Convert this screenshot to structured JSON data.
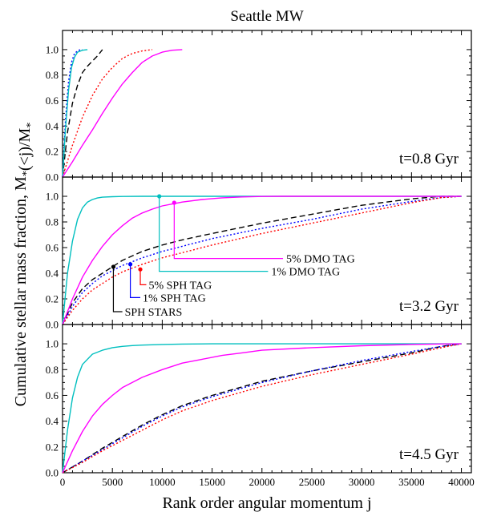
{
  "chart_data": {
    "type": "line",
    "title": "Seattle MW",
    "xlabel": "Rank order angular momentum j",
    "ylabel": "Cumulative stellar mass fraction, M*(<j)/M*",
    "xlim": [
      0,
      41000
    ],
    "ylim": [
      0,
      1.1
    ],
    "x_ticks": [
      "0",
      "5000",
      "10000",
      "15000",
      "20000",
      "25000",
      "30000",
      "35000",
      "40000"
    ],
    "y_ticks": [
      "0.0",
      "0.2",
      "0.4",
      "0.6",
      "0.8",
      "1.0"
    ],
    "grid": false,
    "panels": [
      {
        "time_label": "t=0.8 Gyr",
        "series": [
          {
            "key": "sph_stars",
            "color": "#000000",
            "dash": "dashed",
            "x": [
              0,
              500,
              1000,
              1500,
              2000,
              2500,
              3000,
              3500,
              4000
            ],
            "y": [
              0,
              0.35,
              0.58,
              0.72,
              0.82,
              0.87,
              0.91,
              0.95,
              1.0
            ]
          },
          {
            "key": "sph_tag_1",
            "color": "#0000ff",
            "dash": "dotted",
            "x": [
              0,
              300,
              600,
              900,
              1200,
              1600,
              2000
            ],
            "y": [
              0,
              0.45,
              0.75,
              0.9,
              0.97,
              0.995,
              1.0
            ]
          },
          {
            "key": "sph_tag_5",
            "color": "#ff0000",
            "dash": "dotted",
            "x": [
              0,
              1000,
              2000,
              3000,
              4000,
              5000,
              6000,
              7000,
              8000,
              9000
            ],
            "y": [
              0,
              0.25,
              0.47,
              0.64,
              0.77,
              0.86,
              0.93,
              0.97,
              0.99,
              1.0
            ]
          },
          {
            "key": "dmo_tag_1",
            "color": "#00bfbf",
            "dash": "solid",
            "x": [
              0,
              300,
              600,
              900,
              1200,
              1500,
              2000,
              2500
            ],
            "y": [
              0,
              0.38,
              0.68,
              0.86,
              0.94,
              0.98,
              0.995,
              1.0
            ]
          },
          {
            "key": "dmo_tag_5",
            "color": "#ff00ff",
            "dash": "solid",
            "x": [
              0,
              1000,
              2000,
              3000,
              4000,
              5000,
              6000,
              7000,
              8000,
              9000,
              10000,
              11000,
              12000
            ],
            "y": [
              0,
              0.12,
              0.25,
              0.37,
              0.5,
              0.62,
              0.73,
              0.82,
              0.9,
              0.95,
              0.98,
              0.995,
              1.0
            ]
          }
        ]
      },
      {
        "time_label": "t=3.2 Gyr",
        "series": [
          {
            "key": "sph_stars",
            "color": "#000000",
            "dash": "dashed",
            "x": [
              0,
              1000,
              2000,
              3000,
              4000,
              5000,
              6000,
              8000,
              10000,
              12000,
              15000,
              20000,
              25000,
              30000,
              35000,
              38000,
              40000
            ],
            "y": [
              0,
              0.17,
              0.28,
              0.35,
              0.4,
              0.45,
              0.5,
              0.57,
              0.62,
              0.66,
              0.71,
              0.79,
              0.86,
              0.93,
              0.98,
              1.0,
              1.0
            ]
          },
          {
            "key": "sph_tag_1",
            "color": "#0000ff",
            "dash": "dotted",
            "x": [
              0,
              1000,
              2000,
              3000,
              4000,
              5000,
              6000,
              8000,
              10000,
              12000,
              15000,
              20000,
              25000,
              30000,
              35000,
              38000,
              40000
            ],
            "y": [
              0,
              0.14,
              0.25,
              0.32,
              0.38,
              0.42,
              0.46,
              0.52,
              0.57,
              0.61,
              0.67,
              0.75,
              0.82,
              0.9,
              0.96,
              0.99,
              1.0
            ]
          },
          {
            "key": "sph_tag_5",
            "color": "#ff0000",
            "dash": "dotted",
            "x": [
              0,
              1000,
              2000,
              3000,
              4000,
              5000,
              6000,
              8000,
              10000,
              12000,
              15000,
              20000,
              25000,
              30000,
              35000,
              38000,
              40000
            ],
            "y": [
              0,
              0.11,
              0.2,
              0.27,
              0.32,
              0.37,
              0.41,
              0.47,
              0.52,
              0.56,
              0.62,
              0.71,
              0.79,
              0.87,
              0.95,
              0.99,
              1.0
            ]
          },
          {
            "key": "dmo_tag_1",
            "color": "#00bfbf",
            "dash": "solid",
            "x": [
              0,
              500,
              1000,
              1500,
              2000,
              2500,
              3000,
              3500,
              4000,
              5000,
              6000,
              8000,
              10000,
              40000
            ],
            "y": [
              0,
              0.4,
              0.65,
              0.82,
              0.91,
              0.955,
              0.975,
              0.987,
              0.993,
              0.997,
              0.999,
              1.0,
              1.0,
              1.0
            ]
          },
          {
            "key": "dmo_tag_5",
            "color": "#ff00ff",
            "dash": "solid",
            "x": [
              0,
              1000,
              2000,
              3000,
              4000,
              5000,
              6000,
              7000,
              8000,
              9000,
              10000,
              12000,
              14000,
              16000,
              18000,
              20000,
              22000,
              40000
            ],
            "y": [
              0,
              0.2,
              0.37,
              0.5,
              0.61,
              0.7,
              0.77,
              0.83,
              0.87,
              0.9,
              0.925,
              0.955,
              0.975,
              0.988,
              0.995,
              0.999,
              1.0,
              1.0
            ]
          }
        ],
        "annotations": [
          {
            "label": "SPH STARS",
            "color": "#000000",
            "point": [
              5100,
              0.45
            ],
            "text_at": [
              6000,
              0.1
            ]
          },
          {
            "label": "1% SPH TAG",
            "color": "#0000ff",
            "point": [
              6800,
              0.47
            ],
            "text_at": [
              7800,
              0.21
            ]
          },
          {
            "label": "5% SPH TAG",
            "color": "#ff0000",
            "point": [
              7800,
              0.43
            ],
            "text_at": [
              8400,
              0.31
            ]
          },
          {
            "label": "5% DMO TAG",
            "color": "#ff00ff",
            "point": [
              11200,
              0.95
            ],
            "text_at": [
              32400,
              0.515
            ]
          },
          {
            "label": "1% DMO TAG",
            "color": "#00bfbf",
            "point": [
              9700,
              1.0
            ],
            "text_at": [
              30900,
              0.415
            ]
          }
        ]
      },
      {
        "time_label": "t=4.5 Gyr",
        "series": [
          {
            "key": "sph_stars",
            "color": "#000000",
            "dash": "dashed",
            "x": [
              0,
              2000,
              4000,
              6000,
              8000,
              10000,
              12000,
              15000,
              20000,
              25000,
              30000,
              35000,
              38000,
              40000
            ],
            "y": [
              0,
              0.09,
              0.19,
              0.28,
              0.37,
              0.45,
              0.52,
              0.6,
              0.71,
              0.79,
              0.86,
              0.93,
              0.98,
              1.0
            ]
          },
          {
            "key": "sph_tag_1",
            "color": "#0000ff",
            "dash": "dotted",
            "x": [
              0,
              2000,
              4000,
              6000,
              8000,
              10000,
              12000,
              15000,
              20000,
              25000,
              30000,
              35000,
              38000,
              40000
            ],
            "y": [
              0,
              0.09,
              0.18,
              0.27,
              0.36,
              0.44,
              0.51,
              0.59,
              0.7,
              0.79,
              0.87,
              0.94,
              0.98,
              1.0
            ]
          },
          {
            "key": "sph_tag_5",
            "color": "#ff0000",
            "dash": "dotted",
            "x": [
              0,
              2000,
              4000,
              6000,
              8000,
              10000,
              12000,
              15000,
              20000,
              25000,
              30000,
              35000,
              38000,
              40000
            ],
            "y": [
              0,
              0.08,
              0.17,
              0.25,
              0.33,
              0.41,
              0.48,
              0.56,
              0.67,
              0.76,
              0.84,
              0.92,
              0.97,
              1.0
            ]
          },
          {
            "key": "dmo_tag_1",
            "color": "#00bfbf",
            "dash": "solid",
            "x": [
              0,
              500,
              1000,
              1500,
              2000,
              3000,
              4000,
              5000,
              6000,
              7000,
              8000,
              10000,
              12000,
              15000,
              40000
            ],
            "y": [
              0,
              0.33,
              0.58,
              0.74,
              0.84,
              0.92,
              0.95,
              0.97,
              0.98,
              0.986,
              0.99,
              0.995,
              0.998,
              1.0,
              1.0
            ]
          },
          {
            "key": "dmo_tag_5",
            "color": "#ff00ff",
            "dash": "solid",
            "x": [
              0,
              1000,
              2000,
              3000,
              4000,
              5000,
              6000,
              8000,
              10000,
              12000,
              14000,
              16000,
              18000,
              20000,
              25000,
              30000,
              35000,
              38000,
              40000
            ],
            "y": [
              0,
              0.17,
              0.32,
              0.44,
              0.53,
              0.6,
              0.66,
              0.74,
              0.8,
              0.85,
              0.88,
              0.91,
              0.93,
              0.95,
              0.97,
              0.985,
              0.995,
              0.999,
              1.0
            ]
          }
        ]
      }
    ]
  }
}
